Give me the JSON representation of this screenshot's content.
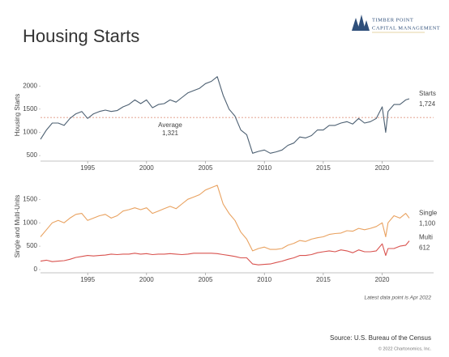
{
  "title": "Housing Starts",
  "logo_lines": [
    "TIMBER POINT",
    "CAPITAL MANAGEMENT"
  ],
  "footnote": "Latest data point is Apr 2022",
  "source": "Source: U.S. Bureau of the Census",
  "copyright": "© 2022 Chartonomics, Inc.",
  "chart_data": [
    {
      "type": "line",
      "y_label": "Housing Starts",
      "x": [
        1991,
        1991.5,
        1992,
        1992.5,
        1993,
        1993.5,
        1994,
        1994.5,
        1995,
        1995.5,
        1996,
        1996.5,
        1997,
        1997.5,
        1998,
        1998.5,
        1999,
        1999.5,
        2000,
        2000.5,
        2001,
        2001.5,
        2002,
        2002.5,
        2003,
        2003.5,
        2004,
        2004.5,
        2005,
        2005.5,
        2006,
        2006.5,
        2007,
        2007.5,
        2008,
        2008.5,
        2009,
        2009.5,
        2010,
        2010.5,
        2011,
        2011.5,
        2012,
        2012.5,
        2013,
        2013.5,
        2014,
        2014.5,
        2015,
        2015.5,
        2016,
        2016.5,
        2017,
        2017.5,
        2018,
        2018.5,
        2019,
        2019.5,
        2020,
        2020.3,
        2020.5,
        2021,
        2021.5,
        2022,
        2022.3
      ],
      "xlim": [
        1991,
        2022.3
      ],
      "xticks": [
        1995,
        2000,
        2005,
        2010,
        2015,
        2020
      ],
      "ylim": [
        450,
        2300
      ],
      "yticks": [
        500,
        1000,
        1500,
        2000
      ],
      "average": {
        "label": "Average",
        "value": 1321,
        "value_label": "1,321",
        "color": "#d9836a"
      },
      "series": [
        {
          "name": "Starts",
          "color": "#4d6072",
          "last_value_label": "1,724",
          "values": [
            850,
            1050,
            1200,
            1200,
            1150,
            1300,
            1400,
            1450,
            1300,
            1400,
            1450,
            1480,
            1450,
            1470,
            1550,
            1600,
            1700,
            1620,
            1700,
            1530,
            1600,
            1620,
            1700,
            1650,
            1750,
            1850,
            1900,
            1950,
            2050,
            2100,
            2200,
            1800,
            1500,
            1350,
            1050,
            950,
            550,
            590,
            620,
            550,
            580,
            620,
            720,
            770,
            900,
            880,
            930,
            1050,
            1050,
            1150,
            1150,
            1200,
            1230,
            1180,
            1300,
            1200,
            1230,
            1300,
            1550,
            1000,
            1450,
            1600,
            1600,
            1700,
            1724
          ]
        }
      ]
    },
    {
      "type": "line",
      "y_label": "Single and Multi-Units",
      "x": [
        1991,
        1991.5,
        1992,
        1992.5,
        1993,
        1993.5,
        1994,
        1994.5,
        1995,
        1995.5,
        1996,
        1996.5,
        1997,
        1997.5,
        1998,
        1998.5,
        1999,
        1999.5,
        2000,
        2000.5,
        2001,
        2001.5,
        2002,
        2002.5,
        2003,
        2003.5,
        2004,
        2004.5,
        2005,
        2005.5,
        2006,
        2006.5,
        2007,
        2007.5,
        2008,
        2008.5,
        2009,
        2009.5,
        2010,
        2010.5,
        2011,
        2011.5,
        2012,
        2012.5,
        2013,
        2013.5,
        2014,
        2014.5,
        2015,
        2015.5,
        2016,
        2016.5,
        2017,
        2017.5,
        2018,
        2018.5,
        2019,
        2019.5,
        2020,
        2020.3,
        2020.5,
        2021,
        2021.5,
        2022,
        2022.3
      ],
      "xlim": [
        1991,
        2022.3
      ],
      "xticks": [
        1995,
        2000,
        2005,
        2010,
        2015,
        2020
      ],
      "ylim": [
        0,
        1850
      ],
      "yticks": [
        0,
        500,
        1000,
        1500
      ],
      "series": [
        {
          "name": "Single",
          "color": "#e9a260",
          "last_value_label": "1,100",
          "values": [
            700,
            850,
            1000,
            1050,
            1000,
            1100,
            1180,
            1200,
            1050,
            1100,
            1150,
            1180,
            1100,
            1150,
            1250,
            1280,
            1320,
            1280,
            1320,
            1200,
            1250,
            1300,
            1350,
            1300,
            1400,
            1500,
            1550,
            1600,
            1700,
            1750,
            1800,
            1400,
            1200,
            1050,
            800,
            650,
            400,
            450,
            480,
            430,
            430,
            450,
            520,
            560,
            620,
            600,
            650,
            680,
            700,
            750,
            770,
            780,
            830,
            820,
            880,
            850,
            880,
            920,
            1000,
            700,
            1000,
            1150,
            1100,
            1200,
            1100
          ]
        },
        {
          "name": "Multi",
          "color": "#d9534f",
          "last_value_label": "612",
          "values": [
            180,
            200,
            170,
            180,
            190,
            220,
            260,
            280,
            300,
            290,
            300,
            310,
            330,
            320,
            330,
            330,
            350,
            330,
            340,
            320,
            330,
            330,
            340,
            330,
            320,
            330,
            350,
            350,
            350,
            350,
            340,
            320,
            300,
            280,
            250,
            250,
            120,
            100,
            110,
            120,
            150,
            180,
            220,
            250,
            300,
            300,
            320,
            360,
            380,
            400,
            380,
            420,
            400,
            360,
            420,
            380,
            380,
            400,
            550,
            300,
            450,
            450,
            500,
            520,
            612
          ]
        }
      ]
    }
  ]
}
